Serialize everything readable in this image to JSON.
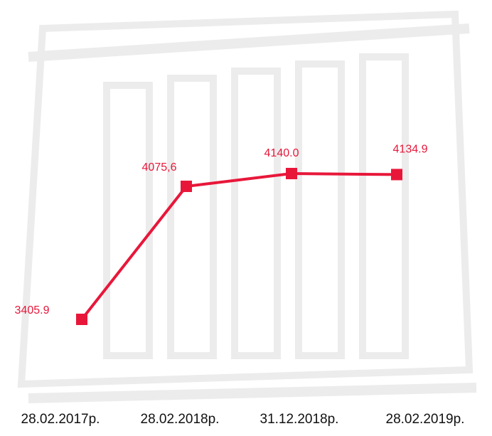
{
  "chart_data": {
    "type": "line",
    "categories": [
      "28.02.2017р.",
      "28.02.2018р.",
      "31.12.2018р.",
      "28.02.2019р."
    ],
    "series": [
      {
        "color": "#e8173a",
        "values": [
          3405.9,
          4075.6,
          4140.0,
          4134.9
        ],
        "value_labels": [
          "3405.9",
          "4075,6",
          "4140.0",
          "4134.9"
        ]
      }
    ]
  }
}
